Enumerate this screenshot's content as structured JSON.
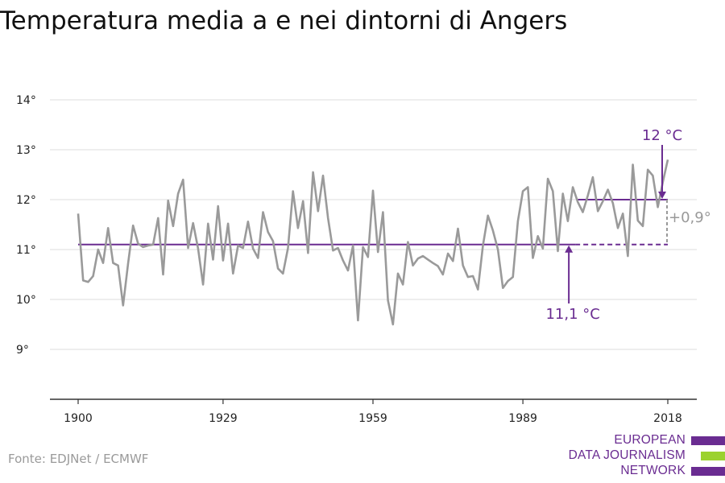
{
  "title": "Temperatura media a e nei dintorni di Angers",
  "source": "Fonte: EDJNet / ECMWF",
  "logo": {
    "lines": [
      "EUROPEAN",
      "DATA JOURNALISM",
      "NETWORK"
    ],
    "colors": [
      "#6a2c91",
      "#9bd22e",
      "#6a2c91"
    ]
  },
  "colors": {
    "line": "#9a9a9a",
    "baseline": "#6a2c91",
    "grid": "#dddddd",
    "axis": "#333333",
    "accent": "#6a2c91",
    "difference": "#999999"
  },
  "chart_data": {
    "type": "line",
    "title": "Temperatura media a e nei dintorni di Angers",
    "xlabel": "",
    "ylabel": "",
    "xlim": [
      1900,
      2018
    ],
    "ylim": [
      8,
      14.5
    ],
    "x_ticks": [
      1900,
      1929,
      1959,
      1989,
      2018
    ],
    "y_ticks": [
      9,
      10,
      11,
      12,
      13,
      14
    ],
    "y_tick_labels": [
      "9°",
      "10°",
      "11°",
      "12°",
      "13°",
      "14°"
    ],
    "grid": true,
    "series": [
      {
        "x": [
          1900,
          1901,
          1902,
          1903,
          1904,
          1905,
          1906,
          1907,
          1908,
          1909,
          1910,
          1911,
          1912,
          1913,
          1914,
          1915,
          1916,
          1917,
          1918,
          1919,
          1920,
          1921,
          1922,
          1923,
          1924,
          1925,
          1926,
          1927,
          1928,
          1929,
          1930,
          1931,
          1932,
          1933,
          1934,
          1935,
          1936,
          1937,
          1938,
          1939,
          1940,
          1941,
          1942,
          1943,
          1944,
          1945,
          1946,
          1947,
          1948,
          1949,
          1950,
          1951,
          1952,
          1953,
          1954,
          1955,
          1956,
          1957,
          1958,
          1959,
          1960,
          1961,
          1962,
          1963,
          1964,
          1965,
          1966,
          1967,
          1968,
          1969,
          1970,
          1971,
          1972,
          1973,
          1974,
          1975,
          1976,
          1977,
          1978,
          1979,
          1980,
          1981,
          1982,
          1983,
          1984,
          1985,
          1986,
          1987,
          1988,
          1989,
          1990,
          1991,
          1992,
          1993,
          1994,
          1995,
          1996,
          1997,
          1998,
          1999,
          2000,
          2001,
          2002,
          2003,
          2004,
          2005,
          2006,
          2007,
          2008,
          2009,
          2010,
          2011,
          2012,
          2013,
          2014,
          2015,
          2016,
          2017,
          2018
        ],
        "y": [
          11.72,
          10.38,
          10.35,
          10.47,
          11.0,
          10.73,
          11.43,
          10.73,
          10.68,
          9.88,
          10.72,
          11.48,
          11.12,
          11.05,
          11.08,
          11.1,
          11.63,
          10.5,
          11.98,
          11.47,
          12.12,
          12.4,
          11.03,
          11.53,
          11.02,
          10.3,
          11.52,
          10.8,
          11.87,
          10.78,
          11.52,
          10.52,
          11.08,
          11.03,
          11.56,
          11.02,
          10.83,
          11.75,
          11.35,
          11.17,
          10.62,
          10.52,
          11.03,
          12.17,
          11.43,
          11.97,
          10.93,
          12.55,
          11.77,
          12.48,
          11.63,
          10.98,
          11.03,
          10.78,
          10.58,
          11.08,
          9.58,
          11.05,
          10.85,
          12.18,
          10.95,
          11.75,
          9.98,
          9.5,
          10.52,
          10.3,
          11.15,
          10.68,
          10.82,
          10.87,
          10.8,
          10.73,
          10.67,
          10.5,
          10.92,
          10.77,
          11.42,
          10.68,
          10.45,
          10.47,
          10.2,
          11.08,
          11.68,
          11.38,
          11.0,
          10.23,
          10.37,
          10.45,
          11.57,
          12.17,
          12.25,
          10.83,
          11.27,
          11.02,
          12.42,
          12.17,
          10.97,
          12.12,
          11.57,
          12.25,
          11.95,
          11.75,
          12.08,
          12.45,
          11.77,
          11.97,
          12.2,
          11.93,
          11.43,
          11.72,
          10.87,
          12.7,
          11.58,
          11.47,
          12.6,
          12.48,
          11.85,
          12.35,
          12.8
        ]
      }
    ],
    "reference_mean": {
      "value": 11.1,
      "from": 1900,
      "to": 1999,
      "dashed_to": 2018
    },
    "recent_mean": {
      "value": 12.0,
      "from": 2000,
      "to": 2018
    },
    "annotations": {
      "reference_label": "11,1 °C",
      "recent_label": "12 °C",
      "difference_label": "+0,9°"
    }
  }
}
